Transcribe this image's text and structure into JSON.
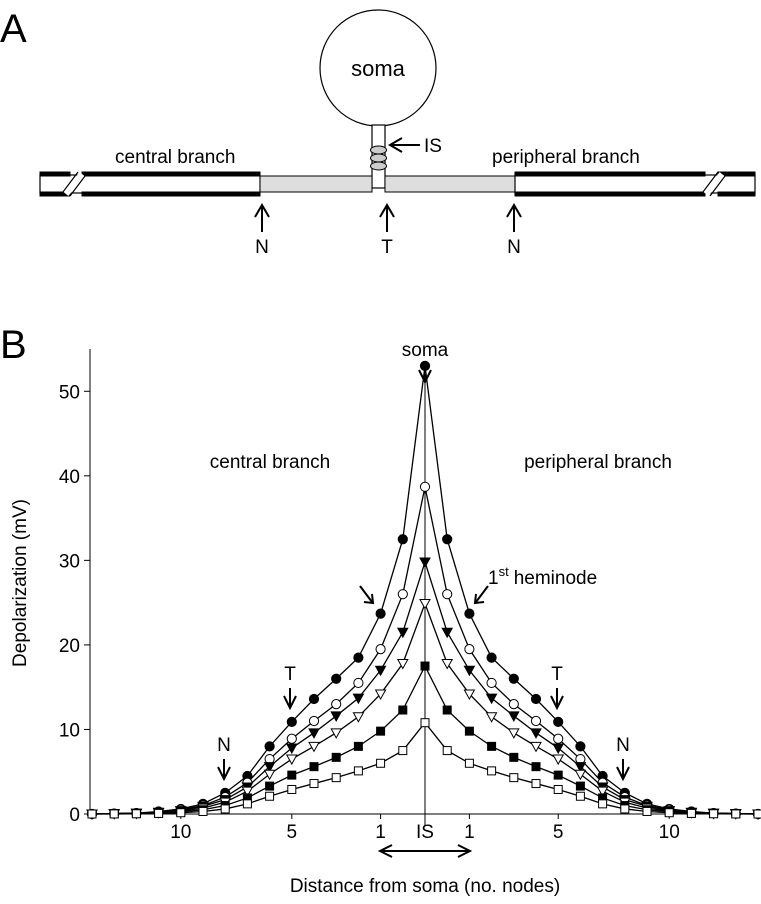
{
  "panel_a": {
    "panel_label": "A",
    "soma": "soma",
    "is": "IS",
    "central": "central branch",
    "peripheral": "peripheral branch",
    "markers": [
      "N",
      "T",
      "N"
    ]
  },
  "chart_data": {
    "type": "line",
    "panel_label": "B",
    "x_label": "Distance from soma (no. nodes)",
    "y_label": "Depolarization (mV)",
    "x": [
      -15,
      -14,
      -13,
      -12,
      -11,
      -10,
      -9,
      -8,
      -7,
      -6,
      -5,
      -4,
      -3,
      -2,
      -1,
      0,
      1,
      2,
      3,
      4,
      5,
      6,
      7,
      8,
      9,
      10,
      11,
      12,
      13,
      14,
      15
    ],
    "xlim": [
      -15,
      15
    ],
    "ylim": [
      0,
      55
    ],
    "xticks": [
      {
        "value": -11,
        "label": "10"
      },
      {
        "value": -6,
        "label": "5"
      },
      {
        "value": -2,
        "label": "1"
      },
      {
        "value": 2,
        "label": "1"
      },
      {
        "value": 6,
        "label": "5"
      },
      {
        "value": 11,
        "label": "10"
      }
    ],
    "yticks": [
      0,
      10,
      20,
      30,
      40,
      50
    ],
    "series": [
      {
        "marker": "circle",
        "filled": true,
        "color": "#000000",
        "values": [
          0,
          0.05,
          0.1,
          0.3,
          0.6,
          1.2,
          2.5,
          4.5,
          8.0,
          10.9,
          13.6,
          16.0,
          18.5,
          23.7,
          32.5,
          53,
          32.5,
          23.7,
          18.5,
          16.0,
          13.6,
          10.9,
          8.0,
          4.5,
          2.5,
          1.2,
          0.6,
          0.3,
          0.1,
          0.05,
          0
        ]
      },
      {
        "marker": "circle",
        "filled": false,
        "color": "#000000",
        "values": [
          0,
          0.05,
          0.1,
          0.2,
          0.5,
          1.0,
          2.0,
          3.7,
          6.5,
          8.9,
          11.0,
          13.0,
          15.5,
          19.5,
          26.0,
          38.7,
          26.0,
          19.5,
          15.5,
          13.0,
          11.0,
          8.9,
          6.5,
          3.7,
          2.0,
          1.0,
          0.5,
          0.2,
          0.1,
          0.05,
          0
        ]
      },
      {
        "marker": "triangle",
        "filled": true,
        "color": "#000000",
        "values": [
          0,
          0.05,
          0.1,
          0.2,
          0.4,
          0.9,
          1.7,
          3.2,
          5.6,
          7.8,
          9.6,
          11.6,
          13.7,
          17.0,
          21.5,
          29.8,
          21.5,
          17.0,
          13.7,
          11.6,
          9.6,
          7.8,
          5.6,
          3.2,
          1.7,
          0.9,
          0.4,
          0.2,
          0.1,
          0.05,
          0
        ]
      },
      {
        "marker": "triangle",
        "filled": false,
        "color": "#000000",
        "values": [
          0,
          0.03,
          0.07,
          0.15,
          0.35,
          0.7,
          1.4,
          2.7,
          4.7,
          6.5,
          8.0,
          9.6,
          11.5,
          14.2,
          17.8,
          24.9,
          17.8,
          14.2,
          11.5,
          9.6,
          8.0,
          6.5,
          4.7,
          2.7,
          1.4,
          0.7,
          0.35,
          0.15,
          0.07,
          0.03,
          0
        ]
      },
      {
        "marker": "square",
        "filled": true,
        "color": "#000000",
        "values": [
          0,
          0.02,
          0.05,
          0.1,
          0.25,
          0.5,
          1.0,
          1.9,
          3.3,
          4.6,
          5.6,
          6.7,
          8.0,
          9.8,
          12.3,
          17.5,
          12.3,
          9.8,
          8.0,
          6.7,
          5.6,
          4.6,
          3.3,
          1.9,
          1.0,
          0.5,
          0.25,
          0.1,
          0.05,
          0.02,
          0
        ]
      },
      {
        "marker": "square",
        "filled": false,
        "color": "#000000",
        "values": [
          0,
          0.01,
          0.03,
          0.07,
          0.15,
          0.3,
          0.6,
          1.2,
          2.1,
          2.9,
          3.6,
          4.3,
          5.1,
          6.0,
          7.5,
          10.8,
          7.5,
          6.0,
          5.1,
          4.3,
          3.6,
          2.9,
          2.1,
          1.2,
          0.6,
          0.3,
          0.15,
          0.07,
          0.03,
          0.01,
          0
        ]
      }
    ],
    "annotations": {
      "soma": "soma",
      "central": "central branch",
      "peripheral": "peripheral branch",
      "heminode": [
        "1",
        "st",
        "heminode"
      ],
      "t_labels": [
        "T",
        "T"
      ],
      "n_labels": [
        "N",
        "N"
      ],
      "is": "IS"
    }
  }
}
